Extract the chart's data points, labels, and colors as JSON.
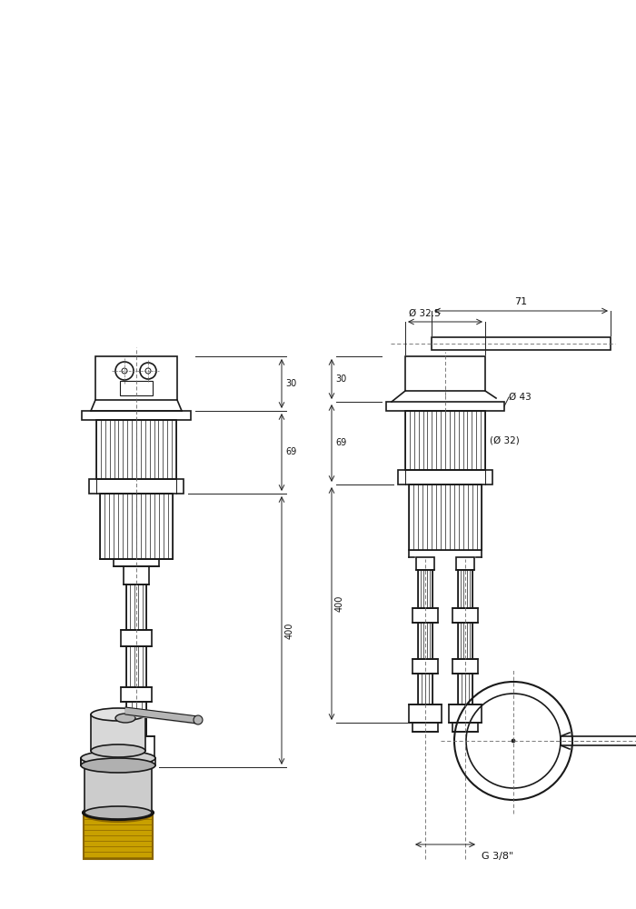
{
  "bg_color": "#ffffff",
  "line_color": "#1a1a1a",
  "dim_color": "#222222",
  "dim_text_color": "#111111",
  "gold_color": "#c8a000",
  "gray_color": "#a0a0a0",
  "light_gray": "#d0d0d0",
  "annotations": {
    "dim_71": "71",
    "dim_32_5": "Ø 32.5",
    "dim_43": "Ø 43",
    "dim_32": "(Ø 32)",
    "dim_30": "30",
    "dim_69": "69",
    "dim_400": "400",
    "dim_g38": "G 3/8\""
  }
}
